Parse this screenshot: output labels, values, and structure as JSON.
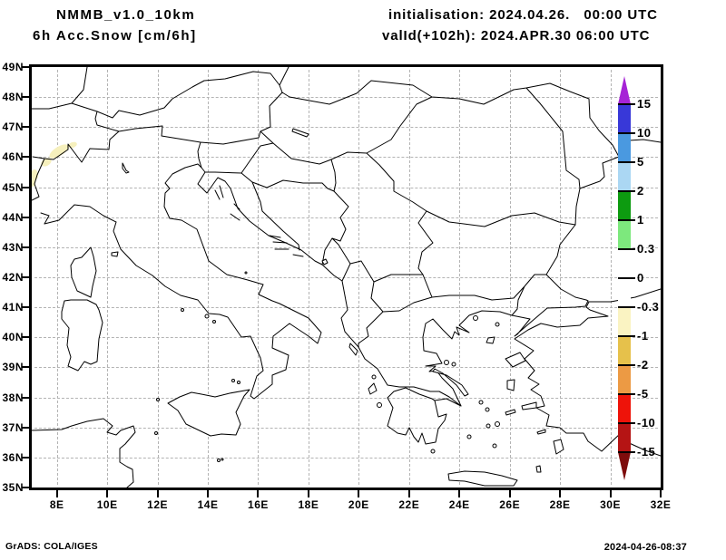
{
  "header": {
    "title_line1": "NMMB_v1.0_10km",
    "title_line2": "6h Acc.Snow [cm/6h]",
    "init_line": "initialisation: 2024.04.26.   00:00 UTC",
    "valid_line": "valId(+102h): 2024.APR.30 06:00 UTC"
  },
  "map": {
    "lat_labels": [
      "49N",
      "48N",
      "47N",
      "46N",
      "45N",
      "44N",
      "43N",
      "42N",
      "41N",
      "40N",
      "39N",
      "38N",
      "37N",
      "36N",
      "35N"
    ],
    "lon_labels": [
      "8E",
      "10E",
      "12E",
      "14E",
      "16E",
      "18E",
      "20E",
      "22E",
      "24E",
      "26E",
      "28E",
      "30E",
      "32E"
    ],
    "grid_color": "#b3b3b3",
    "coast_color": "#000000",
    "snow_patch_color": "#f6f0bd"
  },
  "colorbar": {
    "tick_labels": [
      "15",
      "10",
      "5",
      "2",
      "1",
      "0.3",
      "0",
      "-0.3",
      "-1",
      "-2",
      "-5",
      "-10",
      "-15"
    ],
    "segments": [
      "#3838d8",
      "#4a99e0",
      "#abd7f3",
      "#0d9b10",
      "#7de87d",
      "#ffffff",
      "#ffffff",
      "#faf3c2",
      "#e6c14b",
      "#ec9a44",
      "#ee1309",
      "#b51414"
    ],
    "arrow_top": "#a623d6",
    "arrow_bottom": "#7e0c0c"
  },
  "footer": {
    "left": "GrADS: COLA/IGES",
    "right": "2024-04-26-08:37"
  }
}
